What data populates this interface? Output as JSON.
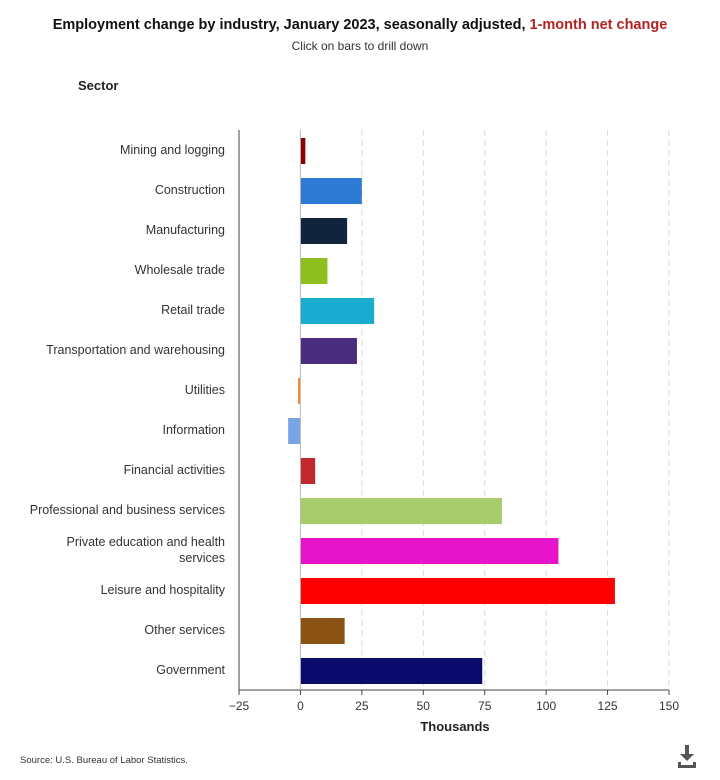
{
  "header": {
    "title_main": "Employment change by industry, January 2023, seasonally adjusted, ",
    "title_highlight": "1-month net change",
    "subtitle": "Click on bars to drill down",
    "axis_category_label": "Sector"
  },
  "footer": {
    "source": "Source: U.S. Bureau of Labor Statistics.",
    "download_icon": "download-icon"
  },
  "chart_data": {
    "type": "bar",
    "orientation": "horizontal",
    "title": "Employment change by industry, January 2023, seasonally adjusted, 1-month net change",
    "xlabel": "Thousands",
    "ylabel": "Sector",
    "xlim": [
      -25,
      150
    ],
    "xticks": [
      -25,
      0,
      25,
      50,
      75,
      100,
      125,
      150
    ],
    "xtick_labels": [
      "−25",
      "0",
      "25",
      "50",
      "75",
      "100",
      "125",
      "150"
    ],
    "grid": "vertical dashed",
    "categories": [
      "Mining and logging",
      "Construction",
      "Manufacturing",
      "Wholesale trade",
      "Retail trade",
      "Transportation and warehousing",
      "Utilities",
      "Information",
      "Financial activities",
      "Professional and business services",
      "Private education and health services",
      "Leisure and hospitality",
      "Other services",
      "Government"
    ],
    "values": [
      2,
      25,
      19,
      11,
      30,
      23,
      -1,
      -5,
      6,
      82,
      105,
      128,
      18,
      74
    ],
    "colors": [
      "#8b0000",
      "#2e7bd6",
      "#12233d",
      "#8fbe1f",
      "#1aacd0",
      "#4b2d7f",
      "#f08a3a",
      "#7aa3e6",
      "#c0282d",
      "#a8cc6c",
      "#e513c9",
      "#ff0000",
      "#8b5313",
      "#0b0b6e"
    ]
  }
}
